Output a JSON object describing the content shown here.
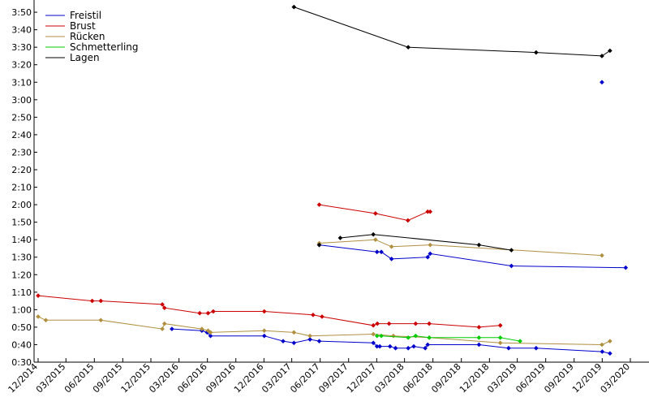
{
  "chart_data": {
    "type": "line",
    "title": "",
    "xlabel": "",
    "ylabel": "",
    "x_axis": {
      "type": "date",
      "range": [
        "2014-12-01",
        "2020-03-01"
      ],
      "tick_labels": [
        "12/2014",
        "03/2015",
        "06/2015",
        "09/2015",
        "12/2015",
        "03/2016",
        "06/2016",
        "09/2016",
        "12/2016",
        "03/2017",
        "06/2017",
        "09/2017",
        "12/2017",
        "03/2018",
        "06/2018",
        "09/2018",
        "12/2018",
        "03/2019",
        "06/2019",
        "09/2019",
        "12/2019",
        "03/2020"
      ]
    },
    "y_axis": {
      "type": "time",
      "range": [
        "0:30",
        "3:57"
      ],
      "tick_labels": [
        "0:30",
        "0:40",
        "0:50",
        "1:00",
        "1:10",
        "1:20",
        "1:30",
        "1:40",
        "1:50",
        "2:00",
        "2:10",
        "2:20",
        "2:30",
        "2:40",
        "2:50",
        "3:00",
        "3:10",
        "3:20",
        "3:30",
        "3:40",
        "3:50"
      ]
    },
    "grid": false,
    "legend": {
      "position": "top-left"
    },
    "series": [
      {
        "name": "Freistil",
        "color": "#0000cc",
        "points": [
          [
            "2016-02-07",
            "0:49"
          ],
          [
            "2016-05-14",
            "0:48"
          ],
          [
            "2016-05-31",
            "0:47"
          ],
          [
            "2016-06-11",
            "0:45"
          ],
          [
            "2016-12-02",
            "0:45"
          ],
          [
            "2017-02-01",
            "0:42"
          ],
          [
            "2017-03-08",
            "0:41"
          ],
          [
            "2017-04-29",
            "0:43"
          ],
          [
            "2017-05-29",
            "0:42"
          ],
          [
            "2017-11-20",
            "0:41"
          ],
          [
            "2017-12-02",
            "0:39"
          ],
          [
            "2017-12-11",
            "0:39"
          ],
          [
            "2018-01-13",
            "0:39"
          ],
          [
            "2018-01-31",
            "0:38"
          ],
          [
            "2018-03-13",
            "0:38"
          ],
          [
            "2018-03-31",
            "0:39"
          ],
          [
            "2018-05-07",
            "0:38"
          ],
          [
            "2018-05-15",
            "0:40"
          ],
          [
            "2018-10-28",
            "0:40"
          ],
          [
            "2019-02-01",
            "0:38"
          ],
          [
            "2019-05-01",
            "0:38"
          ],
          [
            "2019-12-01",
            "0:36"
          ],
          [
            "2019-12-26",
            "0:35"
          ]
        ]
      },
      {
        "name": "Freistil",
        "color": "#0000cc",
        "points": [
          [
            "2017-05-29",
            "1:37"
          ],
          [
            "2017-12-02",
            "1:33"
          ],
          [
            "2017-12-16",
            "1:33"
          ],
          [
            "2018-01-18",
            "1:29"
          ],
          [
            "2018-05-15",
            "1:30"
          ],
          [
            "2018-05-23",
            "1:32"
          ],
          [
            "2019-02-10",
            "1:25"
          ],
          [
            "2020-02-15",
            "1:24"
          ]
        ]
      },
      {
        "name": "Freistil",
        "color": "#0000cc",
        "points": [
          [
            "2019-11-30",
            "3:10"
          ]
        ]
      },
      {
        "name": "Brust",
        "color": "#cc0000",
        "points": [
          [
            "2014-12-01",
            "1:08"
          ],
          [
            "2015-05-25",
            "1:05"
          ],
          [
            "2015-06-22",
            "1:05"
          ],
          [
            "2016-01-07",
            "1:03"
          ],
          [
            "2016-01-14",
            "1:01"
          ],
          [
            "2016-05-07",
            "0:58"
          ],
          [
            "2016-06-03",
            "0:58"
          ],
          [
            "2016-06-20",
            "0:59"
          ],
          [
            "2016-12-02",
            "0:59"
          ],
          [
            "2017-05-09",
            "0:57"
          ],
          [
            "2017-06-07",
            "0:56"
          ],
          [
            "2017-11-20",
            "0:51"
          ],
          [
            "2017-12-03",
            "0:52"
          ],
          [
            "2018-01-10",
            "0:52"
          ],
          [
            "2018-04-06",
            "0:52"
          ],
          [
            "2018-05-20",
            "0:52"
          ],
          [
            "2018-10-28",
            "0:50"
          ],
          [
            "2019-01-05",
            "0:51"
          ]
        ]
      },
      {
        "name": "Brust",
        "color": "#cc0000",
        "points": [
          [
            "2017-05-29",
            "2:00"
          ],
          [
            "2017-11-27",
            "1:55"
          ],
          [
            "2018-03-12",
            "1:51"
          ],
          [
            "2018-05-15",
            "1:56"
          ],
          [
            "2018-05-23",
            "1:56"
          ]
        ]
      },
      {
        "name": "Rücken",
        "color": "#b09040",
        "points": [
          [
            "2014-12-01",
            "0:56"
          ],
          [
            "2014-12-26",
            "0:54"
          ],
          [
            "2015-06-22",
            "0:54"
          ],
          [
            "2016-01-07",
            "0:49"
          ],
          [
            "2016-01-14",
            "0:52"
          ],
          [
            "2016-05-14",
            "0:49"
          ],
          [
            "2016-06-03",
            "0:48"
          ],
          [
            "2016-06-11",
            "0:47"
          ],
          [
            "2016-12-02",
            "0:48"
          ],
          [
            "2017-03-08",
            "0:47"
          ],
          [
            "2017-04-29",
            "0:45"
          ],
          [
            "2017-11-20",
            "0:46"
          ],
          [
            "2018-01-24",
            "0:45"
          ],
          [
            "2018-05-20",
            "0:44"
          ],
          [
            "2019-01-05",
            "0:41"
          ],
          [
            "2019-11-30",
            "0:40"
          ],
          [
            "2019-12-26",
            "0:42"
          ]
        ]
      },
      {
        "name": "Rücken",
        "color": "#b09040",
        "points": [
          [
            "2017-05-29",
            "1:38"
          ],
          [
            "2017-11-27",
            "1:40"
          ],
          [
            "2018-01-18",
            "1:36"
          ],
          [
            "2018-05-23",
            "1:37"
          ],
          [
            "2019-11-30",
            "1:31"
          ]
        ]
      },
      {
        "name": "Schmetterling",
        "color": "#00cc00",
        "points": [
          [
            "2017-12-02",
            "0:45"
          ],
          [
            "2017-12-16",
            "0:45"
          ],
          [
            "2018-03-13",
            "0:44"
          ],
          [
            "2018-04-06",
            "0:45"
          ],
          [
            "2018-05-20",
            "0:44"
          ],
          [
            "2018-10-28",
            "0:44"
          ],
          [
            "2019-01-05",
            "0:44"
          ],
          [
            "2019-03-10",
            "0:42"
          ]
        ]
      },
      {
        "name": "Lagen",
        "color": "#000000",
        "points": [
          [
            "2017-03-08",
            "3:53"
          ],
          [
            "2018-03-13",
            "3:30"
          ],
          [
            "2019-05-01",
            "3:27"
          ],
          [
            "2019-11-30",
            "3:25"
          ],
          [
            "2019-12-26",
            "3:28"
          ]
        ]
      },
      {
        "name": "Lagen",
        "color": "#000000",
        "points": [
          [
            "2017-05-29",
            "1:37"
          ]
        ]
      },
      {
        "name": "Lagen",
        "color": "#000000",
        "points": [
          [
            "2017-08-05",
            "1:41"
          ],
          [
            "2017-11-20",
            "1:43"
          ],
          [
            "2018-10-28",
            "1:37"
          ],
          [
            "2019-02-10",
            "1:34"
          ]
        ]
      }
    ],
    "legend_entries": [
      {
        "label": "Freistil",
        "color": "#0000cc"
      },
      {
        "label": "Brust",
        "color": "#cc0000"
      },
      {
        "label": "Rücken",
        "color": "#b09040"
      },
      {
        "label": "Schmetterling",
        "color": "#00cc00"
      },
      {
        "label": "Lagen",
        "color": "#000000"
      }
    ]
  }
}
